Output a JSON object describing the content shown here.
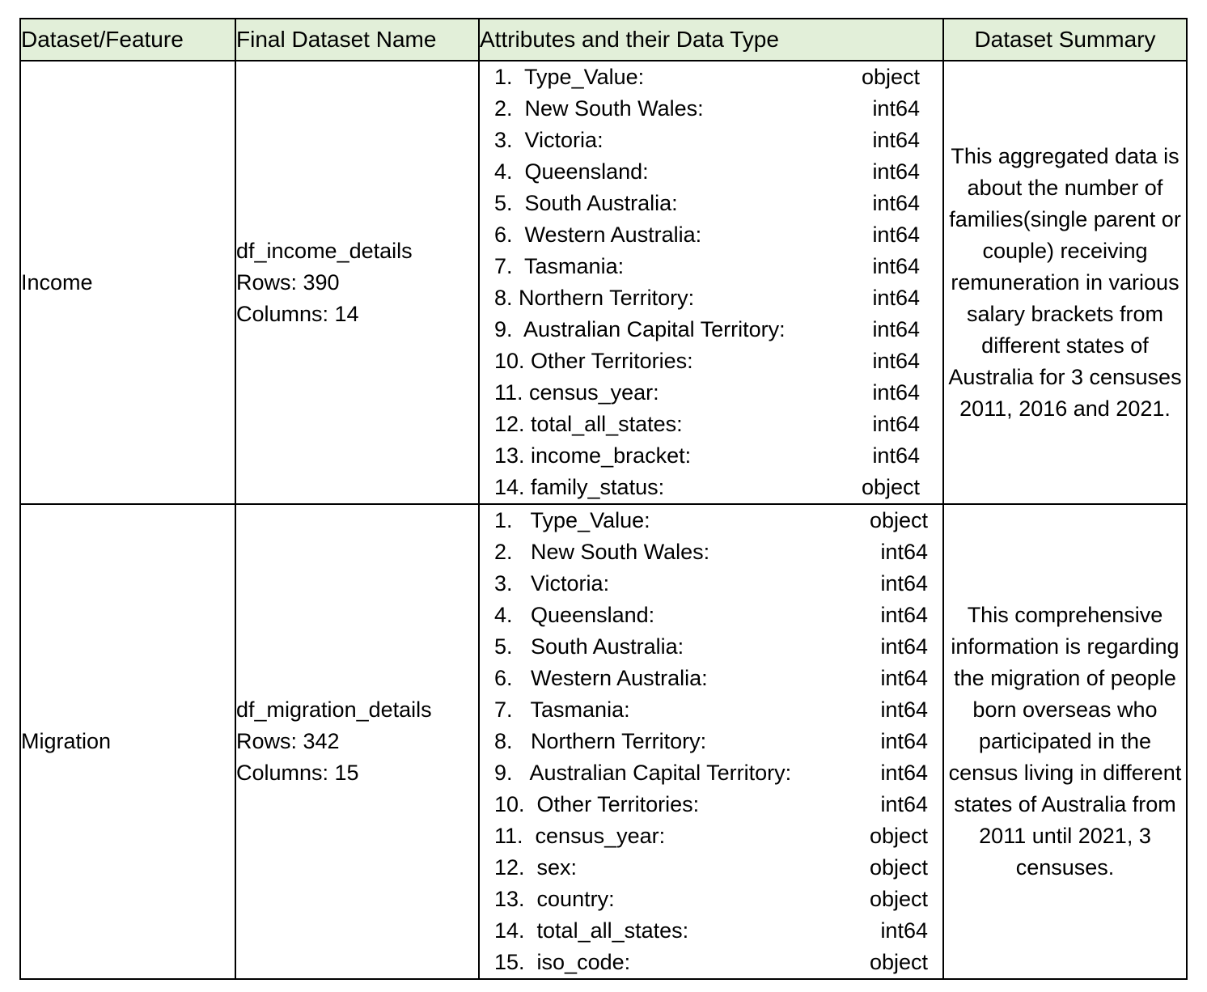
{
  "headers": {
    "feature": "Dataset/Feature",
    "final_name": "Final Dataset Name",
    "attributes": "Attributes and their Data Type",
    "summary": "Dataset Summary"
  },
  "rows": [
    {
      "feature": "Income",
      "dataset_name": "df_income_details",
      "rows_text": "Rows: 390",
      "columns_text": "Columns: 14",
      "attributes": [
        {
          "name": "1.  Type_Value:",
          "type": "object"
        },
        {
          "name": "2.  New South Wales:",
          "type": "int64"
        },
        {
          "name": "3.  Victoria:",
          "type": "int64"
        },
        {
          "name": "4.  Queensland:",
          "type": "int64"
        },
        {
          "name": "5.  South Australia:",
          "type": "int64"
        },
        {
          "name": "6.  Western Australia:",
          "type": "int64"
        },
        {
          "name": "7.  Tasmania:",
          "type": "int64"
        },
        {
          "name": "8. Northern Territory:",
          "type": "int64"
        },
        {
          "name": "9.  Australian Capital Territory:",
          "type": "int64"
        },
        {
          "name": "10. Other Territories:",
          "type": "int64"
        },
        {
          "name": "11. census_year:",
          "type": "int64"
        },
        {
          "name": "12. total_all_states:",
          "type": "int64"
        },
        {
          "name": "13. income_bracket:",
          "type": "int64"
        },
        {
          "name": "14. family_status:",
          "type": "object"
        }
      ],
      "summary": "This aggregated data is about the number of families(single parent or couple) receiving remuneration in various salary brackets from different states of Australia for 3 censuses 2011, 2016 and 2021."
    },
    {
      "feature": "Migration",
      "dataset_name": "df_migration_details",
      "rows_text": "Rows: 342",
      "columns_text": "Columns: 15",
      "attributes": [
        {
          "name": "1.   Type_Value:",
          "type": "object"
        },
        {
          "name": "2.   New South Wales:",
          "type": "int64"
        },
        {
          "name": "3.   Victoria:",
          "type": "int64"
        },
        {
          "name": "4.   Queensland:",
          "type": "int64"
        },
        {
          "name": "5.   South Australia:",
          "type": "int64"
        },
        {
          "name": "6.   Western Australia:",
          "type": "int64"
        },
        {
          "name": "7.   Tasmania:",
          "type": "int64"
        },
        {
          "name": "8.   Northern Territory:",
          "type": "int64"
        },
        {
          "name": "9.   Australian Capital Territory:",
          "type": "int64"
        },
        {
          "name": "10.  Other Territories:",
          "type": "int64"
        },
        {
          "name": "11.  census_year:",
          "type": "object"
        },
        {
          "name": "12.  sex:",
          "type": "object"
        },
        {
          "name": "13.  country:",
          "type": "object"
        },
        {
          "name": "14.  total_all_states:",
          "type": "int64"
        },
        {
          "name": "15.  iso_code:",
          "type": "object"
        }
      ],
      "summary": "This comprehensive information is regarding the migration of people born overseas who participated in the census living in different states of Australia from 2011 until 2021, 3 censuses."
    }
  ],
  "colors": {
    "header_bg": "#e2efd9",
    "border": "#000000"
  }
}
